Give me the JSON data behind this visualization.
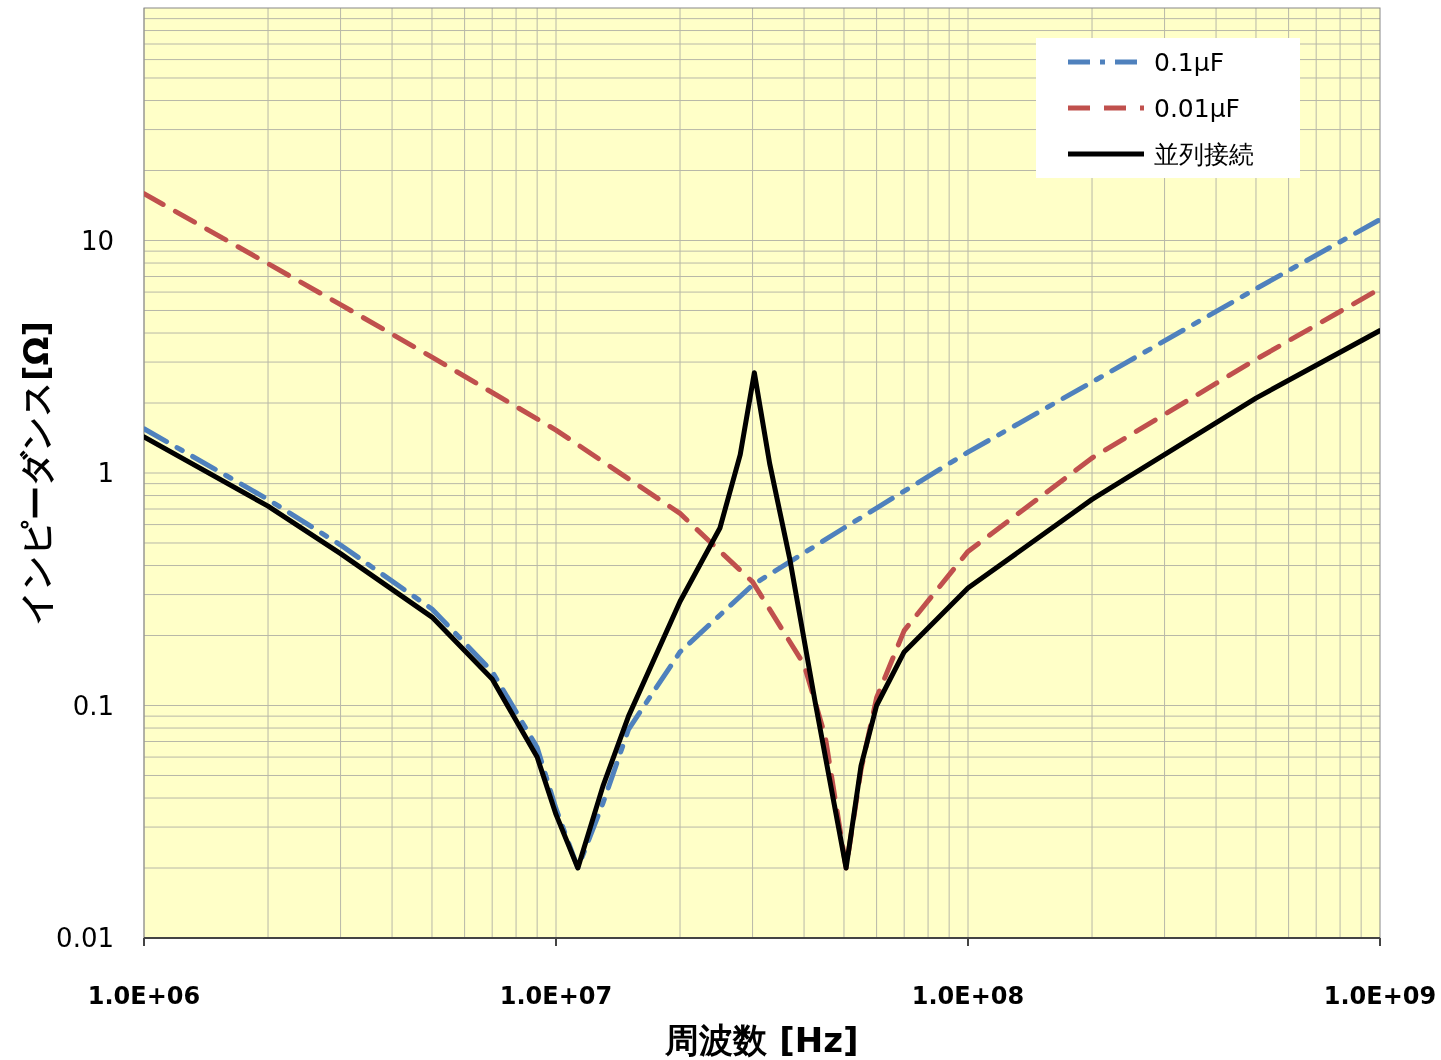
{
  "chart_data": {
    "type": "line",
    "xlabel": "周波数 [Hz]",
    "ylabel": "インピーダンス[Ω]",
    "log": "xy",
    "grid": true,
    "legend": "top right",
    "xlim": [
      1000000,
      1000000000
    ],
    "ylim": [
      0.01,
      100
    ],
    "xticks": [
      {
        "value": 1000000,
        "label": "1.0E+06"
      },
      {
        "value": 10000000,
        "label": "1.0E+07"
      },
      {
        "value": 100000000,
        "label": "1.0E+08"
      },
      {
        "value": 1000000000,
        "label": "1.0E+09"
      }
    ],
    "yticks": [
      0.01,
      0.1,
      1,
      10
    ],
    "series": [
      {
        "name": "0.1μF",
        "color": "#4f81bd",
        "line_style": "dashdot",
        "x": [
          1000000,
          2000000,
          3000000,
          5000000,
          7000000,
          9000000,
          10000000,
          11300000,
          13000000,
          15000000,
          20000000,
          30000000,
          50000000,
          100000000,
          200000000,
          500000000,
          1000000000
        ],
        "values": [
          1.55,
          0.77,
          0.49,
          0.26,
          0.14,
          0.066,
          0.036,
          0.02,
          0.038,
          0.079,
          0.17,
          0.33,
          0.58,
          1.23,
          2.46,
          6.2,
          12.3
        ]
      },
      {
        "name": "0.01μF",
        "color": "#c0504d",
        "line_style": "dashed",
        "x": [
          1000000,
          2000000,
          3000000,
          5000000,
          10000000,
          20000000,
          30000000,
          40000000,
          45000000,
          50600000,
          55000000,
          60000000,
          70000000,
          100000000,
          200000000,
          500000000,
          1000000000
        ],
        "values": [
          15.9,
          7.95,
          5.3,
          3.15,
          1.53,
          0.67,
          0.34,
          0.15,
          0.074,
          0.02,
          0.053,
          0.108,
          0.21,
          0.46,
          1.16,
          3.08,
          6.2
        ]
      },
      {
        "name": "並列接続",
        "color": "#000000",
        "line_style": "solid",
        "x": [
          1000000,
          2000000,
          3000000,
          5000000,
          7000000,
          9000000,
          10000000,
          11300000,
          13000000,
          15000000,
          20000000,
          25000000,
          28000000,
          30300000,
          33000000,
          37000000,
          42500000,
          50600000,
          55000000,
          60000000,
          70000000,
          100000000,
          200000000,
          500000000,
          1000000000
        ],
        "values": [
          1.43,
          0.72,
          0.45,
          0.24,
          0.13,
          0.06,
          0.034,
          0.02,
          0.045,
          0.09,
          0.28,
          0.58,
          1.2,
          2.7,
          1.1,
          0.42,
          0.105,
          0.02,
          0.055,
          0.1,
          0.17,
          0.32,
          0.77,
          2.1,
          4.1
        ]
      }
    ]
  }
}
